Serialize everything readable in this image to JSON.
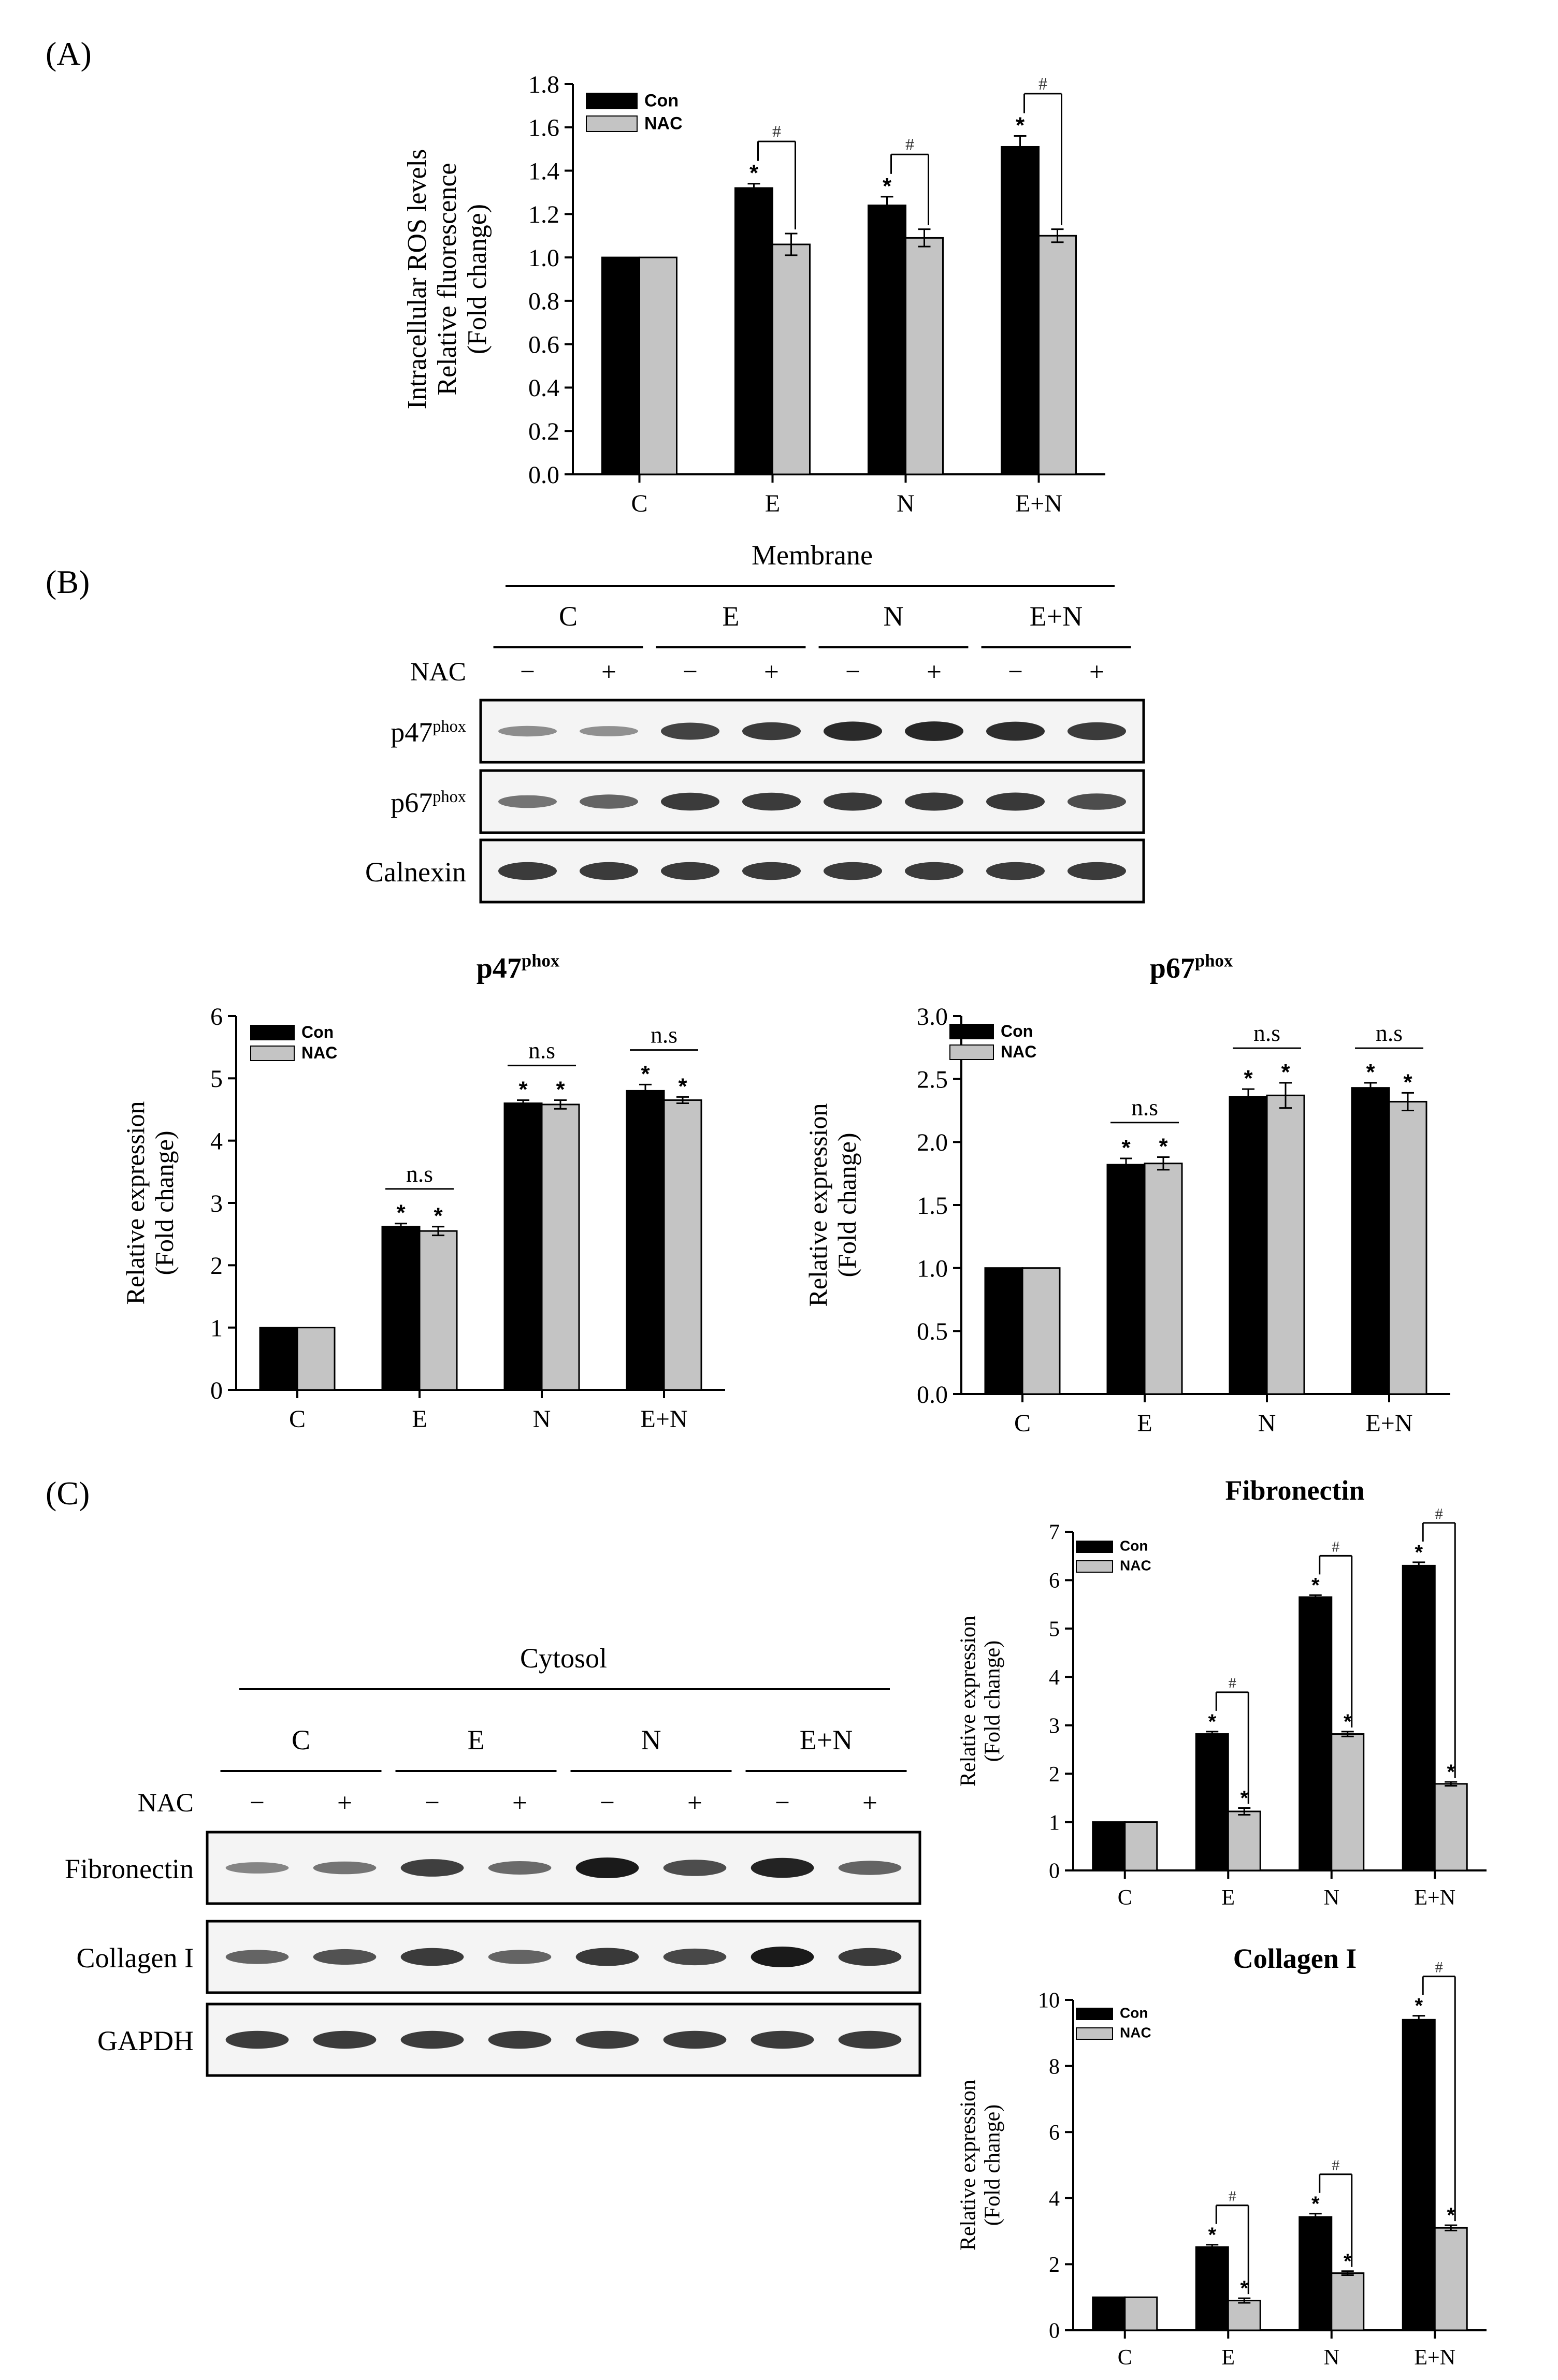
{
  "panel_labels": {
    "a": "(A)",
    "b": "(B)",
    "c": "(C)"
  },
  "colors": {
    "con": "#000000",
    "nac": "#c4c4c4",
    "blot_bg": "#f4f4f4",
    "band": "#1a1a1a"
  },
  "blot_b": {
    "title": "Membrane",
    "groups": [
      "C",
      "E",
      "N",
      "E+N"
    ],
    "treatment_label": "NAC",
    "signs": [
      "−",
      "+",
      "−",
      "+",
      "−",
      "+",
      "−",
      "+"
    ],
    "rows": [
      {
        "label": "p47",
        "sup": "phox",
        "intensity": [
          0.3,
          0.28,
          0.75,
          0.8,
          0.9,
          0.92,
          0.88,
          0.8
        ]
      },
      {
        "label": "p67",
        "sup": "phox",
        "intensity": [
          0.45,
          0.55,
          0.8,
          0.8,
          0.82,
          0.82,
          0.82,
          0.7
        ]
      },
      {
        "label": "Calnexin",
        "sup": "",
        "intensity": [
          0.8,
          0.8,
          0.8,
          0.8,
          0.8,
          0.8,
          0.8,
          0.8
        ]
      }
    ]
  },
  "blot_c": {
    "title": "Cytosol",
    "groups": [
      "C",
      "E",
      "N",
      "E+N"
    ],
    "treatment_label": "NAC",
    "signs": [
      "−",
      "+",
      "−",
      "+",
      "−",
      "+",
      "−",
      "+"
    ],
    "rows": [
      {
        "label": "Fibronectin",
        "sup": "",
        "intensity": [
          0.35,
          0.45,
          0.78,
          0.5,
          1.0,
          0.7,
          0.95,
          0.55
        ]
      },
      {
        "label": "Collagen I",
        "sup": "",
        "intensity": [
          0.55,
          0.65,
          0.8,
          0.55,
          0.82,
          0.72,
          1.0,
          0.8
        ]
      },
      {
        "label": "GAPDH",
        "sup": "",
        "intensity": [
          0.8,
          0.8,
          0.8,
          0.8,
          0.8,
          0.8,
          0.8,
          0.8
        ]
      }
    ]
  },
  "chart_data": [
    {
      "id": "ros",
      "type": "bar",
      "title": "",
      "title_sup": "",
      "ylabel_lines": [
        "Intracellular ROS levels",
        "Relative fluorescence",
        "(Fold change)"
      ],
      "xlabel": "",
      "categories": [
        "C",
        "E",
        "N",
        "E+N"
      ],
      "ylim": [
        0,
        1.8
      ],
      "yticks": [
        0.0,
        0.2,
        0.4,
        0.6,
        0.8,
        1.0,
        1.2,
        1.4,
        1.6,
        1.8
      ],
      "legend": [
        "Con",
        "NAC"
      ],
      "legend_position": "top-left",
      "series": [
        {
          "name": "Con",
          "values": [
            1.0,
            1.32,
            1.24,
            1.51
          ],
          "errors": [
            0,
            0.02,
            0.04,
            0.05
          ],
          "stars": [
            "",
            "*",
            "*",
            "*"
          ]
        },
        {
          "name": "NAC",
          "values": [
            1.0,
            1.06,
            1.09,
            1.1
          ],
          "errors": [
            0,
            0.05,
            0.04,
            0.03
          ],
          "stars": [
            "",
            "",
            "",
            ""
          ]
        }
      ],
      "comparisons": [
        "",
        "#",
        "#",
        "#"
      ]
    },
    {
      "id": "p47",
      "type": "bar",
      "title": "p47",
      "title_sup": "phox",
      "ylabel_lines": [
        "Relative expression",
        "(Fold change)"
      ],
      "xlabel": "",
      "categories": [
        "C",
        "E",
        "N",
        "E+N"
      ],
      "ylim": [
        0,
        6
      ],
      "yticks": [
        0,
        1,
        2,
        3,
        4,
        5,
        6
      ],
      "legend": [
        "Con",
        "NAC"
      ],
      "legend_position": "top-left",
      "series": [
        {
          "name": "Con",
          "values": [
            1.0,
            2.62,
            4.6,
            4.8
          ],
          "errors": [
            0,
            0.05,
            0.05,
            0.1
          ],
          "stars": [
            "",
            "*",
            "*",
            "*"
          ]
        },
        {
          "name": "NAC",
          "values": [
            1.0,
            2.55,
            4.58,
            4.65
          ],
          "errors": [
            0,
            0.07,
            0.07,
            0.05
          ],
          "stars": [
            "",
            "*",
            "*",
            "*"
          ]
        }
      ],
      "comparisons": [
        "",
        "n.s",
        "n.s",
        "n.s"
      ]
    },
    {
      "id": "p67",
      "type": "bar",
      "title": "p67",
      "title_sup": "phox",
      "ylabel_lines": [
        "Relative expression",
        "(Fold change)"
      ],
      "xlabel": "",
      "categories": [
        "C",
        "E",
        "N",
        "E+N"
      ],
      "ylim": [
        0,
        3.0
      ],
      "yticks": [
        0.0,
        0.5,
        1.0,
        1.5,
        2.0,
        2.5,
        3.0
      ],
      "legend": [
        "Con",
        "NAC"
      ],
      "legend_position": "top-left",
      "series": [
        {
          "name": "Con",
          "values": [
            1.0,
            1.82,
            2.36,
            2.43
          ],
          "errors": [
            0,
            0.05,
            0.06,
            0.04
          ],
          "stars": [
            "",
            "*",
            "*",
            "*"
          ]
        },
        {
          "name": "NAC",
          "values": [
            1.0,
            1.83,
            2.37,
            2.32
          ],
          "errors": [
            0,
            0.05,
            0.1,
            0.07
          ],
          "stars": [
            "",
            "*",
            "*",
            "*"
          ]
        }
      ],
      "comparisons": [
        "",
        "n.s",
        "n.s",
        "n.s"
      ]
    },
    {
      "id": "fibronectin",
      "type": "bar",
      "title": "Fibronectin",
      "title_sup": "",
      "ylabel_lines": [
        "Relative expression",
        "(Fold change)"
      ],
      "xlabel": "",
      "categories": [
        "C",
        "E",
        "N",
        "E+N"
      ],
      "ylim": [
        0,
        7
      ],
      "yticks": [
        0,
        1,
        2,
        3,
        4,
        5,
        6,
        7
      ],
      "legend": [
        "Con",
        "NAC"
      ],
      "legend_position": "top-left",
      "series": [
        {
          "name": "Con",
          "values": [
            1.0,
            2.82,
            5.65,
            6.3
          ],
          "errors": [
            0,
            0.05,
            0.04,
            0.07
          ],
          "stars": [
            "",
            "*",
            "*",
            "*"
          ]
        },
        {
          "name": "NAC",
          "values": [
            1.0,
            1.22,
            2.82,
            1.79
          ],
          "errors": [
            0,
            0.07,
            0.05,
            0.04
          ],
          "stars": [
            "",
            "*",
            "*",
            "*"
          ]
        }
      ],
      "comparisons": [
        "",
        "#",
        "#",
        "#"
      ]
    },
    {
      "id": "collagen",
      "type": "bar",
      "title": "Collagen I",
      "title_sup": "",
      "ylabel_lines": [
        "Relative expression",
        "(Fold change)"
      ],
      "xlabel": "",
      "categories": [
        "C",
        "E",
        "N",
        "E+N"
      ],
      "ylim": [
        0,
        10
      ],
      "yticks": [
        0,
        2,
        4,
        6,
        8,
        10
      ],
      "legend": [
        "Con",
        "NAC"
      ],
      "legend_position": "top-left",
      "series": [
        {
          "name": "Con",
          "values": [
            1.0,
            2.52,
            3.43,
            9.4
          ],
          "errors": [
            0,
            0.07,
            0.1,
            0.12
          ],
          "stars": [
            "",
            "*",
            "*",
            "*"
          ]
        },
        {
          "name": "NAC",
          "values": [
            1.0,
            0.9,
            1.73,
            3.1
          ],
          "errors": [
            0,
            0.07,
            0.06,
            0.08
          ],
          "stars": [
            "",
            "*",
            "*",
            "*"
          ]
        }
      ],
      "comparisons": [
        "",
        "#",
        "#",
        "#"
      ]
    }
  ]
}
